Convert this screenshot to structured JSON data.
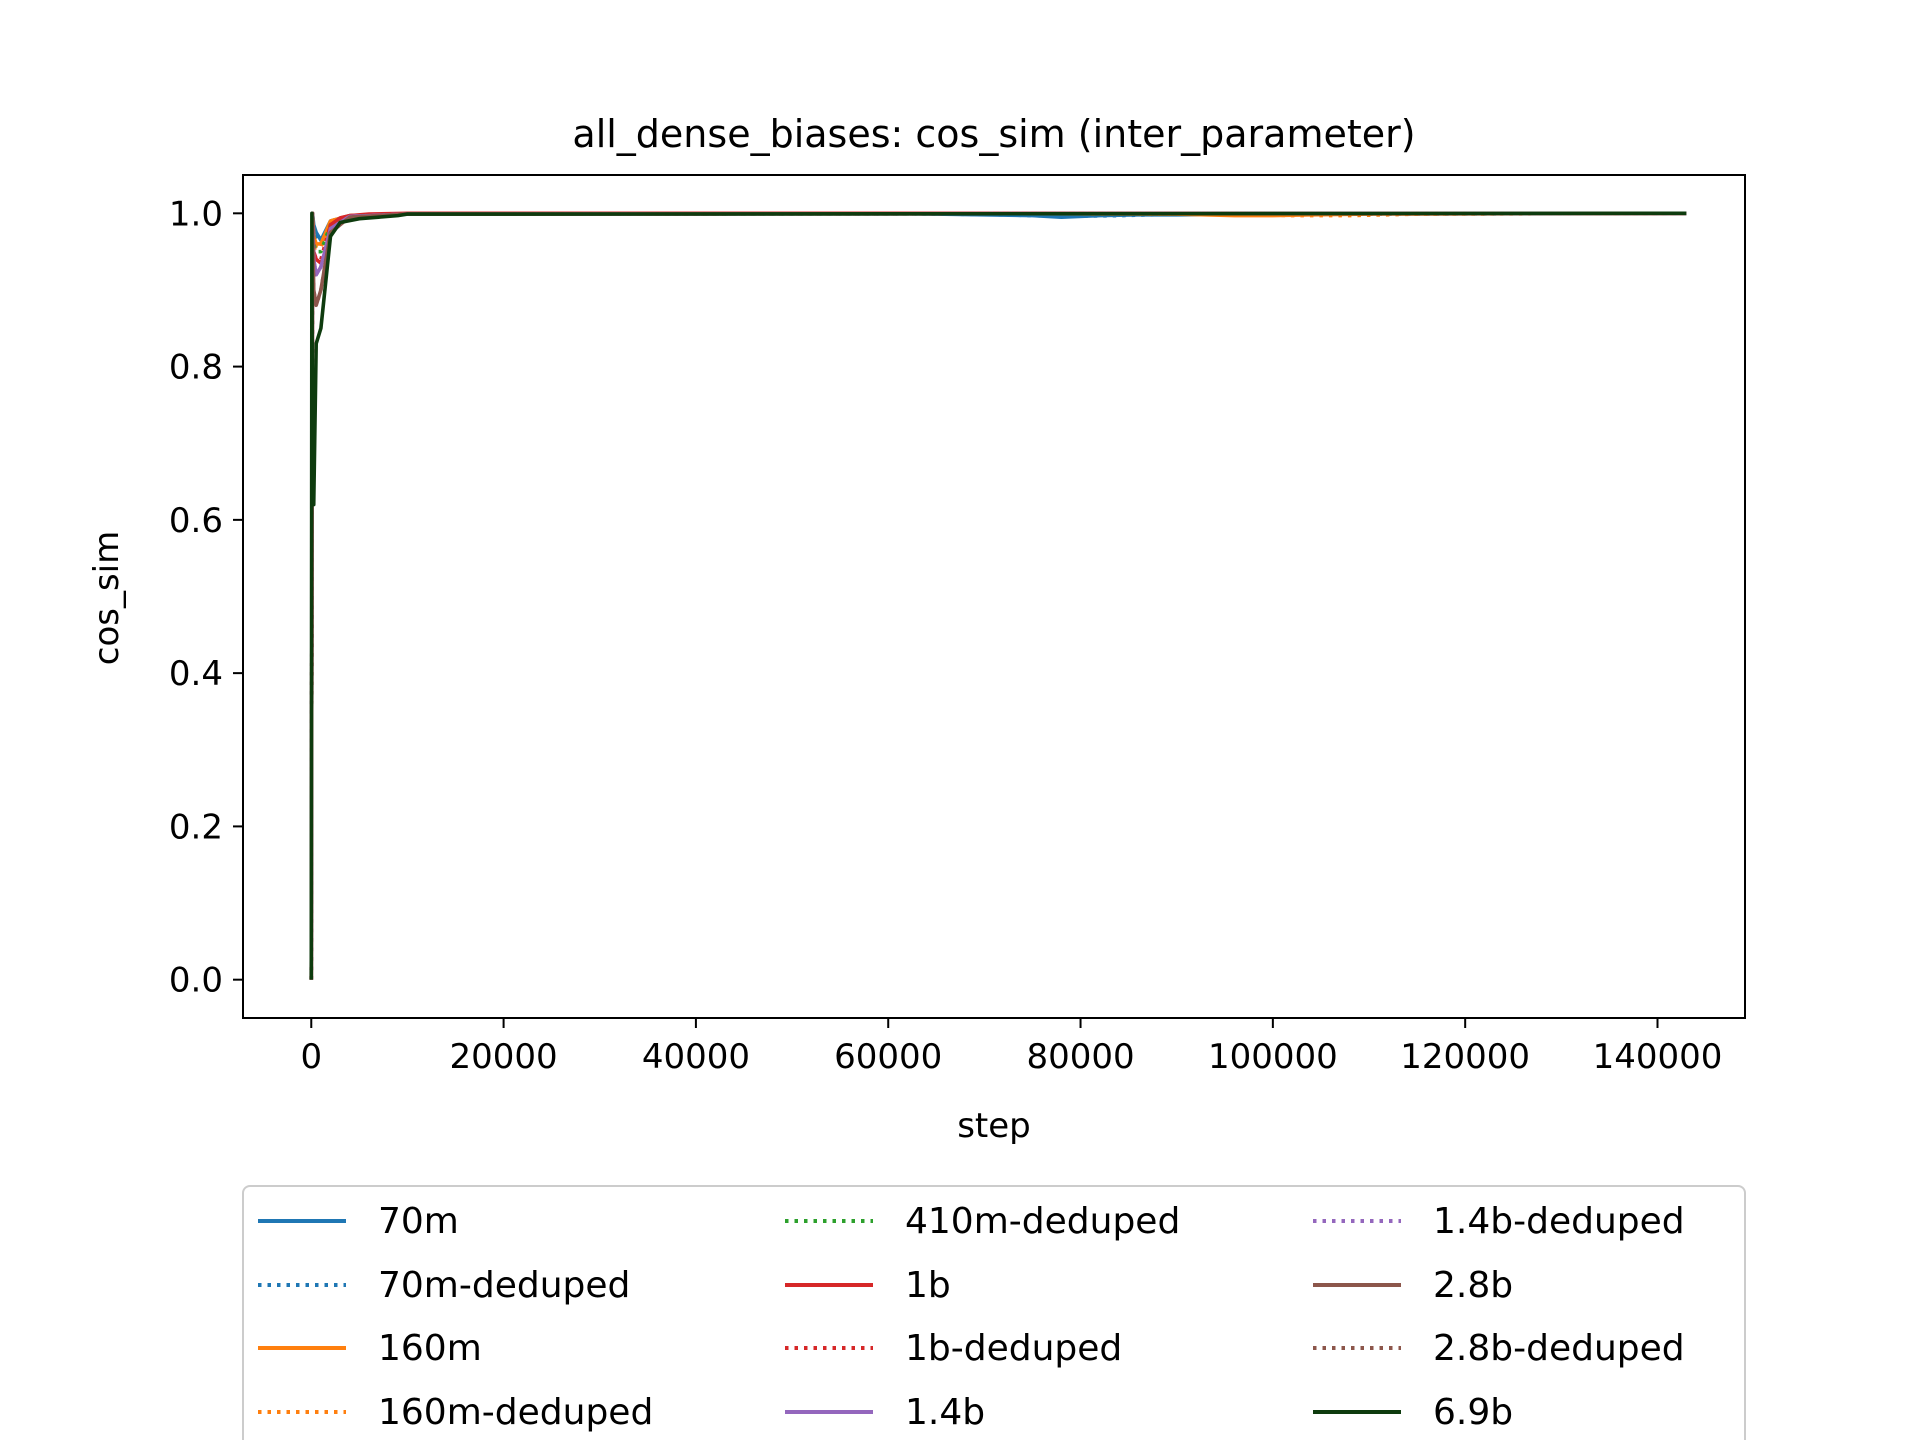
{
  "chart_data": {
    "type": "line",
    "title": "all_dense_biases: cos_sim (inter_parameter)",
    "xlabel": "step",
    "ylabel": "cos_sim",
    "xlim": [
      -7100,
      149100
    ],
    "ylim": [
      -0.05,
      1.05
    ],
    "x_ticks": [
      0,
      20000,
      40000,
      60000,
      80000,
      100000,
      120000,
      140000
    ],
    "x_tick_labels": [
      "0",
      "20000",
      "40000",
      "60000",
      "80000",
      "100000",
      "120000",
      "140000"
    ],
    "y_ticks": [
      0.0,
      0.2,
      0.4,
      0.6,
      0.8,
      1.0
    ],
    "y_tick_labels": [
      "0.0",
      "0.2",
      "0.4",
      "0.6",
      "0.8",
      "1.0"
    ],
    "grid": false,
    "legend_placement": "bottom-outside",
    "legend_columns": 3,
    "series": [
      {
        "name": "70m",
        "color": "#1f77b4",
        "style": "solid",
        "x": [
          0,
          128,
          256,
          512,
          1000,
          2000,
          4000,
          10000,
          30000,
          60000,
          70000,
          75000,
          78000,
          82000,
          86000,
          90000,
          100000,
          120000,
          143000
        ],
        "y": [
          0.0,
          1.0,
          0.985,
          0.975,
          0.965,
          0.99,
          0.997,
          0.999,
          0.999,
          1.0,
          0.998,
          0.997,
          0.995,
          0.997,
          0.998,
          0.998,
          0.999,
          1.0,
          1.0
        ]
      },
      {
        "name": "70m-deduped",
        "color": "#1f77b4",
        "style": "dotted",
        "x": [
          0,
          128,
          256,
          512,
          1000,
          2000,
          4000,
          10000,
          60000,
          72000,
          78000,
          84000,
          90000,
          110000,
          143000
        ],
        "y": [
          0.0,
          1.0,
          0.98,
          0.97,
          0.96,
          0.988,
          0.996,
          0.999,
          1.0,
          0.998,
          0.996,
          0.997,
          0.999,
          0.999,
          1.0
        ]
      },
      {
        "name": "160m",
        "color": "#ff7f0e",
        "style": "solid",
        "x": [
          0,
          128,
          256,
          512,
          1000,
          2000,
          4000,
          10000,
          60000,
          90000,
          96000,
          100000,
          104000,
          110000,
          143000
        ],
        "y": [
          0.0,
          1.0,
          0.97,
          0.96,
          0.96,
          0.99,
          0.997,
          0.999,
          1.0,
          0.999,
          0.997,
          0.997,
          0.998,
          0.999,
          1.0
        ]
      },
      {
        "name": "160m-deduped",
        "color": "#ff7f0e",
        "style": "dotted",
        "x": [
          0,
          128,
          256,
          512,
          1000,
          2000,
          4000,
          10000,
          60000,
          95000,
          102000,
          108000,
          115000,
          143000
        ],
        "y": [
          0.0,
          1.0,
          0.97,
          0.955,
          0.955,
          0.99,
          0.997,
          0.999,
          1.0,
          0.999,
          0.997,
          0.997,
          0.999,
          1.0
        ]
      },
      {
        "name": "410m-deduped",
        "color": "#2ca02c",
        "style": "dotted",
        "x": [
          0,
          128,
          256,
          512,
          1000,
          2000,
          4000,
          10000,
          143000
        ],
        "y": [
          0.0,
          1.0,
          0.96,
          0.95,
          0.95,
          0.985,
          0.997,
          0.999,
          1.0
        ]
      },
      {
        "name": "1b",
        "color": "#d62728",
        "style": "solid",
        "x": [
          0,
          128,
          256,
          512,
          1000,
          1500,
          2000,
          3000,
          4000,
          6000,
          10000,
          143000
        ],
        "y": [
          0.0,
          1.0,
          0.95,
          0.94,
          0.935,
          0.95,
          0.985,
          0.994,
          0.997,
          0.999,
          1.0,
          1.0
        ]
      },
      {
        "name": "1b-deduped",
        "color": "#d62728",
        "style": "dotted",
        "x": [
          0,
          128,
          256,
          512,
          1000,
          2000,
          4000,
          10000,
          143000
        ],
        "y": [
          0.0,
          1.0,
          0.95,
          0.94,
          0.94,
          0.985,
          0.997,
          0.999,
          1.0
        ]
      },
      {
        "name": "1.4b",
        "color": "#9467bd",
        "style": "solid",
        "x": [
          0,
          128,
          256,
          512,
          1000,
          2000,
          4000,
          10000,
          143000
        ],
        "y": [
          0.0,
          1.0,
          0.94,
          0.92,
          0.93,
          0.98,
          0.996,
          0.999,
          1.0
        ]
      },
      {
        "name": "1.4b-deduped",
        "color": "#9467bd",
        "style": "dotted",
        "x": [
          0,
          128,
          256,
          512,
          1000,
          2000,
          4000,
          10000,
          143000
        ],
        "y": [
          0.0,
          1.0,
          0.94,
          0.92,
          0.93,
          0.98,
          0.996,
          0.999,
          1.0
        ]
      },
      {
        "name": "2.8b",
        "color": "#8c564b",
        "style": "solid",
        "x": [
          0,
          128,
          256,
          512,
          1000,
          2000,
          4000,
          10000,
          143000
        ],
        "y": [
          0.0,
          1.0,
          0.9,
          0.88,
          0.9,
          0.975,
          0.995,
          0.999,
          1.0
        ]
      },
      {
        "name": "2.8b-deduped",
        "color": "#8c564b",
        "style": "dotted",
        "x": [
          0,
          128,
          256,
          512,
          1000,
          2000,
          4000,
          10000,
          143000
        ],
        "y": [
          0.0,
          1.0,
          0.9,
          0.88,
          0.9,
          0.975,
          0.995,
          0.999,
          1.0
        ]
      },
      {
        "name": "6.9b",
        "color": "#0e3b0e",
        "style": "solid",
        "x": [
          0,
          64,
          128,
          256,
          512,
          1000,
          2000,
          3000,
          5000,
          7000,
          9000,
          10000,
          20000,
          143000
        ],
        "y": [
          0.0,
          1.0,
          0.62,
          0.62,
          0.83,
          0.85,
          0.97,
          0.988,
          0.993,
          0.995,
          0.997,
          0.999,
          0.999,
          1.0
        ]
      }
    ]
  }
}
